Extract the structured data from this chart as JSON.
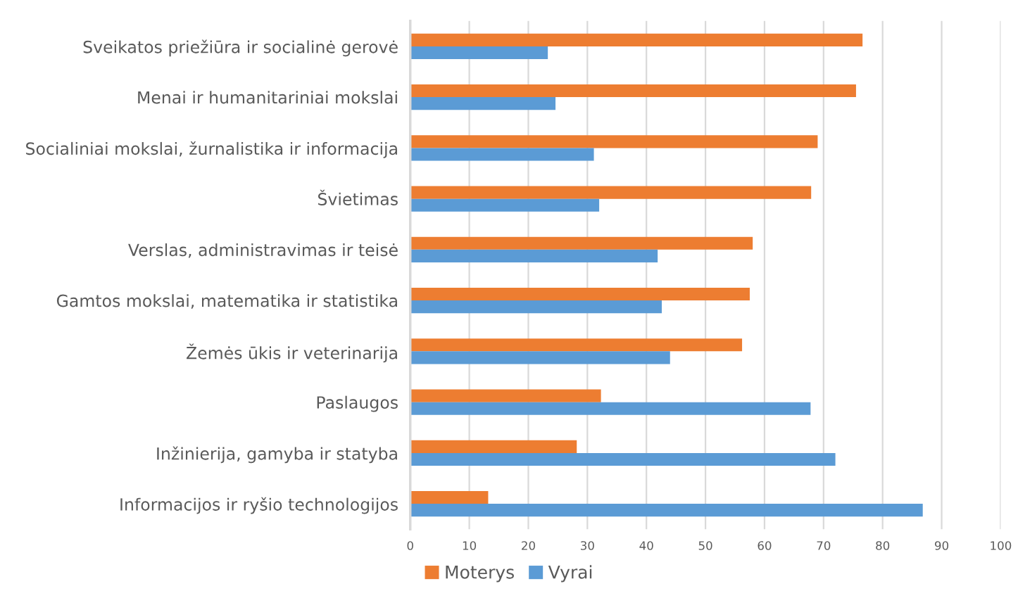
{
  "chart_data": {
    "type": "bar",
    "orientation": "horizontal",
    "categories": [
      "Sveikatos priežiūra ir socialinė gerovė",
      "Menai ir humanitariniai mokslai",
      "Socialiniai mokslai, žurnalistika ir informacija",
      "Švietimas",
      "Verslas, administravimas ir teisė",
      "Gamtos mokslai, matematika ir statistika",
      "Žemės ūkis ir veterinarija",
      "Paslaugos",
      "Inžinierija, gamyba ir statyba",
      "Informacijos ir ryšio technologijos"
    ],
    "series": [
      {
        "name": "Moterys",
        "color": "#ed7d31",
        "values": [
          76.6,
          75.5,
          69.0,
          67.9,
          58.0,
          57.5,
          56.2,
          32.3,
          28.2,
          13.2
        ]
      },
      {
        "name": "Vyrai",
        "color": "#5b9bd5",
        "values": [
          23.3,
          24.6,
          31.1,
          32.0,
          41.9,
          42.6,
          44.0,
          67.8,
          72.0,
          86.8
        ]
      }
    ],
    "xlim": [
      0,
      100
    ],
    "xticks": [
      0,
      10,
      20,
      30,
      40,
      50,
      60,
      70,
      80,
      90,
      100
    ],
    "grid": "x",
    "legend": "bottom"
  }
}
